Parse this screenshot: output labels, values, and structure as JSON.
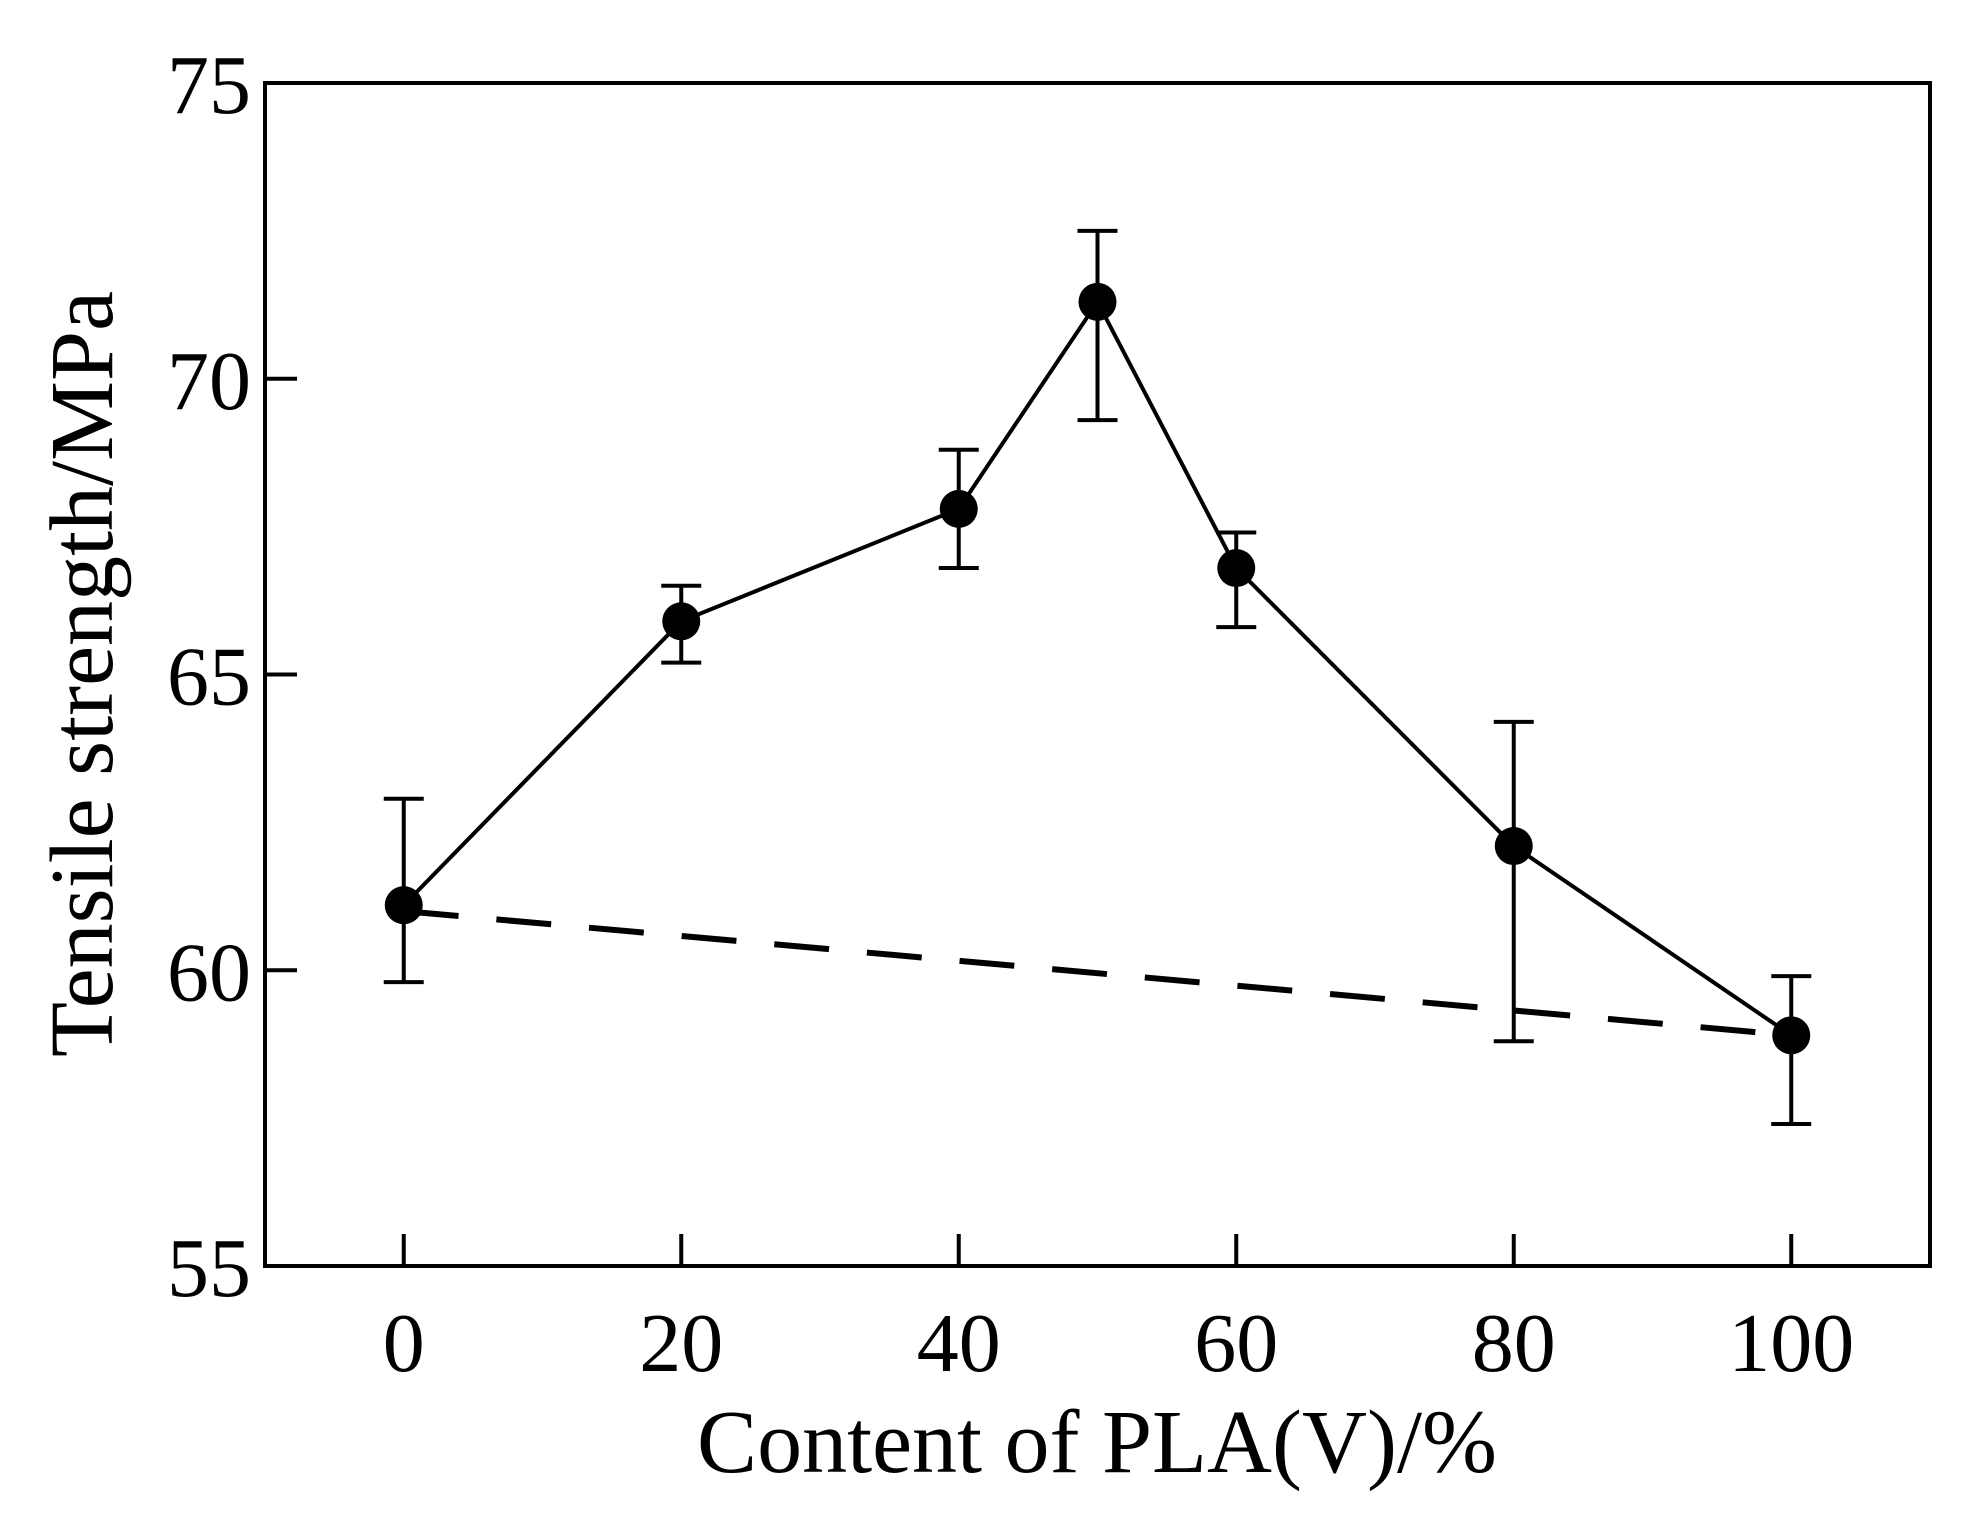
{
  "chart_data": {
    "type": "line",
    "title": "",
    "xlabel": "Content of PLA(V)/%",
    "ylabel": "Tensile strength/MPa",
    "xlim": [
      -10,
      110
    ],
    "ylim": [
      55,
      75
    ],
    "x_ticks": [
      0,
      20,
      40,
      60,
      80,
      100
    ],
    "y_ticks": [
      55,
      60,
      65,
      70,
      75
    ],
    "grid": false,
    "legend": "none",
    "series": [
      {
        "style": "solid-with-markers",
        "x": [
          0,
          20,
          40,
          50,
          60,
          80,
          100
        ],
        "y": [
          61.1,
          65.9,
          67.8,
          71.3,
          66.8,
          62.1,
          58.9
        ],
        "error_low": [
          59.8,
          65.2,
          66.8,
          69.3,
          65.8,
          58.8,
          57.4
        ],
        "error_high": [
          62.9,
          66.5,
          68.8,
          72.5,
          67.4,
          64.2,
          59.9
        ]
      },
      {
        "style": "dashed",
        "x": [
          0,
          100
        ],
        "y": [
          61.0,
          58.9
        ]
      }
    ]
  }
}
